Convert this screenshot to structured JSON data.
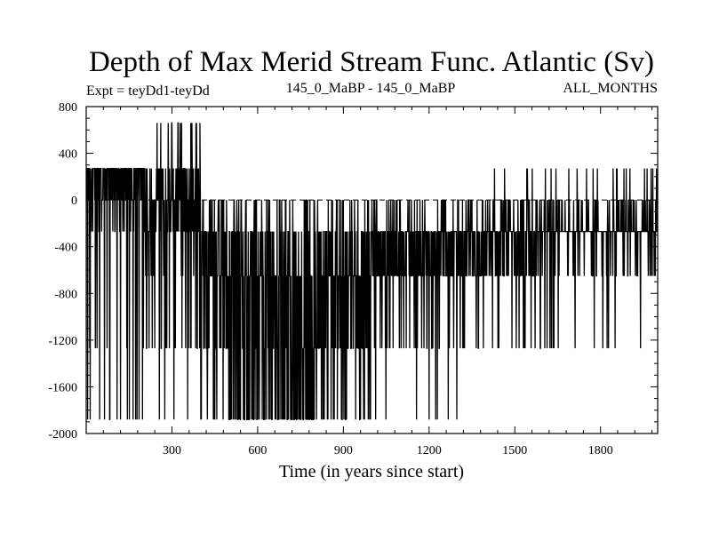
{
  "chart_data": {
    "type": "line",
    "title": "Depth of Max Merid Stream Func. Atlantic (Sv)",
    "subtitle_left": "Expt = teyDd1-teyDd",
    "subtitle_center": "145_0_MaBP - 145_0_MaBP",
    "subtitle_right": "ALL_MONTHS",
    "xlabel": "Time (in years since start)",
    "ylabel": "",
    "xlim": [
      0,
      2000
    ],
    "ylim": [
      -2000,
      800
    ],
    "xticks": [
      300,
      600,
      900,
      1200,
      1500,
      1800
    ],
    "yticks": [
      800,
      400,
      0,
      -400,
      -800,
      -1200,
      -1600,
      -2000
    ],
    "zero_line": "dashed",
    "line_color": "#000000",
    "levels": [
      -1880,
      -1270,
      -650,
      -270,
      0,
      270,
      660
    ],
    "segments": [
      {
        "x": [
          0,
          200
        ],
        "distribution": [
          [
            270,
            0.52
          ],
          [
            0,
            0.3
          ],
          [
            -270,
            0.08
          ],
          [
            -1270,
            0.04
          ],
          [
            -1880,
            0.06
          ]
        ]
      },
      {
        "x": [
          200,
          400
        ],
        "distribution": [
          [
            270,
            0.22
          ],
          [
            0,
            0.25
          ],
          [
            -270,
            0.25
          ],
          [
            -650,
            0.08
          ],
          [
            -1270,
            0.1
          ],
          [
            -1880,
            0.02
          ],
          [
            660,
            0.08
          ]
        ]
      },
      {
        "x": [
          400,
          500
        ],
        "distribution": [
          [
            0,
            0.15
          ],
          [
            -270,
            0.35
          ],
          [
            -650,
            0.2
          ],
          [
            -1270,
            0.2
          ],
          [
            -1880,
            0.1
          ]
        ]
      },
      {
        "x": [
          500,
          800
        ],
        "distribution": [
          [
            0,
            0.1
          ],
          [
            -270,
            0.22
          ],
          [
            -650,
            0.25
          ],
          [
            -1270,
            0.18
          ],
          [
            -1880,
            0.25
          ]
        ]
      },
      {
        "x": [
          800,
          1000
        ],
        "distribution": [
          [
            0,
            0.1
          ],
          [
            -270,
            0.28
          ],
          [
            -650,
            0.3
          ],
          [
            -1270,
            0.2
          ],
          [
            -1880,
            0.12
          ]
        ]
      },
      {
        "x": [
          1000,
          1400
        ],
        "distribution": [
          [
            0,
            0.1
          ],
          [
            -270,
            0.38
          ],
          [
            -650,
            0.4
          ],
          [
            -1270,
            0.1
          ],
          [
            -1880,
            0.02
          ]
        ]
      },
      {
        "x": [
          1400,
          1600
        ],
        "distribution": [
          [
            0,
            0.12
          ],
          [
            -270,
            0.52
          ],
          [
            -650,
            0.26
          ],
          [
            -1270,
            0.06
          ],
          [
            270,
            0.04
          ]
        ]
      },
      {
        "x": [
          1600,
          2000
        ],
        "distribution": [
          [
            0,
            0.12
          ],
          [
            -270,
            0.68
          ],
          [
            -650,
            0.1
          ],
          [
            -1270,
            0.04
          ],
          [
            270,
            0.06
          ]
        ]
      }
    ]
  }
}
